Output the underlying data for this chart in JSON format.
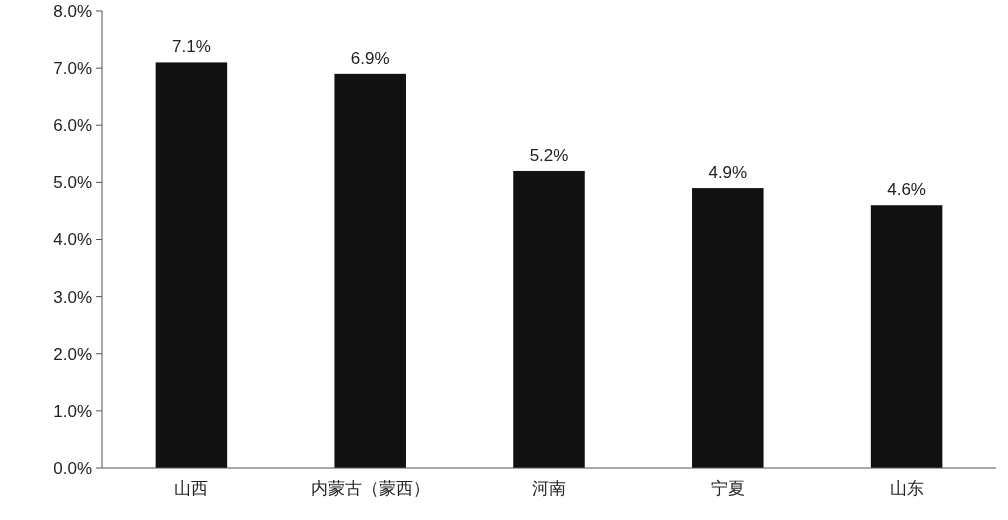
{
  "chart_data": {
    "type": "bar",
    "categories": [
      "山西",
      "内蒙古（蒙西）",
      "河南",
      "宁夏",
      "山东"
    ],
    "values": [
      7.1,
      6.9,
      5.2,
      4.9,
      4.6
    ],
    "color": "#111111",
    "value_labels": [
      "7.1%",
      "6.9%",
      "5.2%",
      "4.9%",
      "4.6%"
    ],
    "ylim": [
      0,
      8
    ],
    "yticks": [
      {
        "value": 0,
        "label": "0.0%"
      },
      {
        "value": 1,
        "label": "1.0%"
      },
      {
        "value": 2,
        "label": "2.0%"
      },
      {
        "value": 3,
        "label": "3.0%"
      },
      {
        "value": 4,
        "label": "4.0%"
      },
      {
        "value": 5,
        "label": "5.0%"
      },
      {
        "value": 6,
        "label": "6.0%"
      },
      {
        "value": 7,
        "label": "7.0%"
      },
      {
        "value": 8,
        "label": "8.0%"
      }
    ],
    "grid": false
  }
}
